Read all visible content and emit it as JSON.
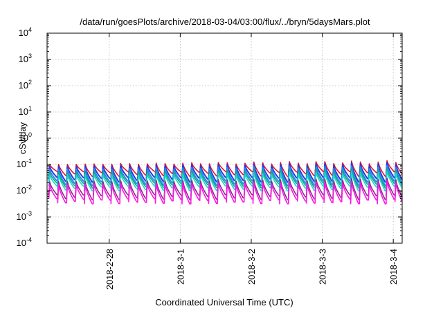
{
  "chart_data": {
    "type": "line",
    "title": "/data/run/goesPlots/archive/2018-03-04/03:00/flux/../bryn/5daysMars.plot",
    "xlabel": "Coordinated Universal Time (UTC)",
    "ylabel": "cSv/day",
    "y_scale": "log",
    "ylim": [
      0.0001,
      10000
    ],
    "y_ticks": [
      {
        "value": 0.0001,
        "base": "10",
        "exp": "-4"
      },
      {
        "value": 0.001,
        "base": "10",
        "exp": "-3"
      },
      {
        "value": 0.01,
        "base": "10",
        "exp": "-2"
      },
      {
        "value": 0.1,
        "base": "10",
        "exp": "-1"
      },
      {
        "value": 1,
        "base": "10",
        "exp": "0"
      },
      {
        "value": 10,
        "base": "10",
        "exp": "1"
      },
      {
        "value": 100,
        "base": "10",
        "exp": "2"
      },
      {
        "value": 1000,
        "base": "10",
        "exp": "3"
      },
      {
        "value": 10000,
        "base": "10",
        "exp": "4"
      }
    ],
    "x_type": "date",
    "xlim": [
      "2018-02-27T03:00",
      "2018-03-04T03:00"
    ],
    "x_ticks": [
      {
        "value": "2018-02-28T00:00",
        "label": "2018-2-28"
      },
      {
        "value": "2018-03-01T00:00",
        "label": "2018-3-1"
      },
      {
        "value": "2018-03-02T00:00",
        "label": "2018-3-2"
      },
      {
        "value": "2018-03-03T00:00",
        "label": "2018-3-3"
      },
      {
        "value": "2018-03-04T00:00",
        "label": "2018-3-4"
      }
    ],
    "grid": true,
    "legend": "none",
    "period_hours": 3,
    "series": [
      {
        "color": "#e8112d",
        "peak": 0.1,
        "trough": 0.05
      },
      {
        "color": "#2a3bd6",
        "peak": 0.085,
        "trough": 0.03
      },
      {
        "color": "#1f8cff",
        "peak": 0.065,
        "trough": 0.022
      },
      {
        "color": "#18a96b",
        "peak": 0.05,
        "trough": 0.018
      },
      {
        "color": "#17d6d6",
        "peak": 0.04,
        "trough": 0.014
      },
      {
        "color": "#8a2a8a",
        "peak": 0.022,
        "trough": 0.0065
      },
      {
        "color": "#ff14e6",
        "peak": 0.017,
        "trough": 0.0045
      }
    ]
  }
}
